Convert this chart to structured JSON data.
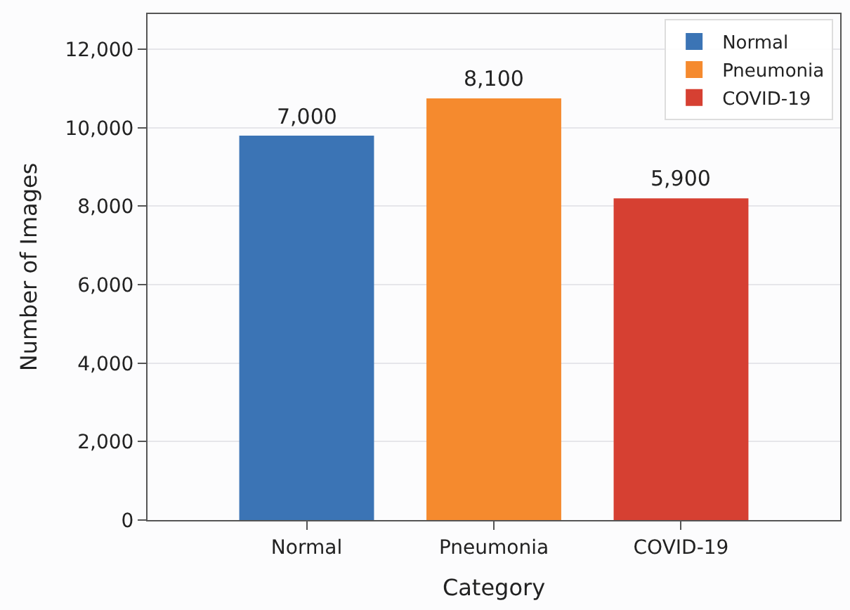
{
  "chart_data": {
    "type": "bar",
    "xlabel": "Category",
    "ylabel": "Number of Images",
    "categories": [
      "Normal",
      "Pneumonia",
      "COVID-19"
    ],
    "series": [
      {
        "name": "Normal",
        "color": "#3b74b5",
        "values": [
          9800,
          null,
          null
        ]
      },
      {
        "name": "Pneumonia",
        "color": "#f58a2e",
        "values": [
          null,
          10750,
          null
        ]
      },
      {
        "name": "COVID-19",
        "color": "#d64032",
        "values": [
          null,
          null,
          8200
        ]
      }
    ],
    "annotations": [
      {
        "text": "7,000",
        "x": "Normal",
        "y": 9800
      },
      {
        "text": "8,100",
        "x": "Pneumonia",
        "y": 10750
      },
      {
        "text": "5,900",
        "x": "COVID-19",
        "y": 8200
      }
    ],
    "ylim": [
      0,
      12900
    ],
    "yticks": [
      {
        "value": 0,
        "label": "0"
      },
      {
        "value": 2000,
        "label": "2,000"
      },
      {
        "value": 4000,
        "label": "4,000"
      },
      {
        "value": 6000,
        "label": "6,000"
      },
      {
        "value": 8000,
        "label": "8,000"
      },
      {
        "value": 10000,
        "label": "10,000"
      },
      {
        "value": 12000,
        "label": "12,000"
      }
    ],
    "grid": "y",
    "legend": "top right"
  }
}
